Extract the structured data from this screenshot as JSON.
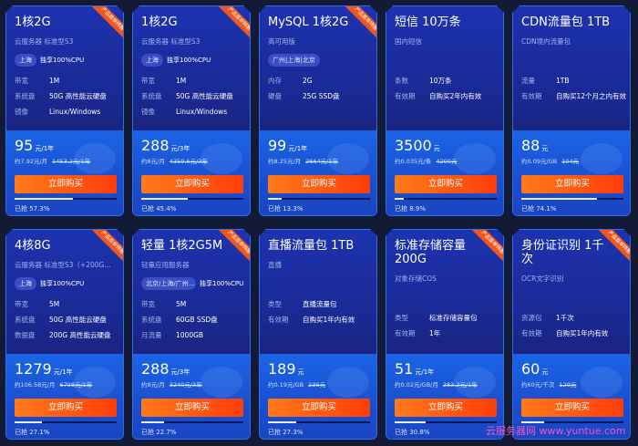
{
  "ribbon_label": "产品首单特惠",
  "buy_label": "立即购买",
  "sold_prefix": "已抢",
  "watermark": "云服务器网 www.yuntue.com",
  "colors": {
    "background": "#131a35",
    "button": "#ff5a12",
    "ribbon": "#f0571e",
    "card_top": "#1c33b0",
    "card_bottom": "#1b64e6"
  },
  "cards": [
    {
      "title": "1核2G",
      "subtitle": "云服务器 标准型S3",
      "ribbon": true,
      "tags": [
        "上海"
      ],
      "tag_note": "独享100%CPU",
      "specs": [
        [
          "带宽",
          "1M"
        ],
        [
          "系统盘",
          "50G 高性能云硬盘"
        ],
        [
          "镜像",
          "Linux/Windows"
        ]
      ],
      "price": "95",
      "unit": "元/1年",
      "per": "约7.92元/月",
      "orig": "1453.2元/1年",
      "sold_pct": 57.3,
      "sold_text": "已抢 57.3%"
    },
    {
      "title": "1核2G",
      "subtitle": "云服务器 标准型S3",
      "ribbon": true,
      "tags": [
        "上海"
      ],
      "tag_note": "独享100%CPU",
      "specs": [
        [
          "带宽",
          "1M"
        ],
        [
          "系统盘",
          "50G 高性能云硬盘"
        ],
        [
          "镜像",
          "Linux/Windows"
        ]
      ],
      "price": "288",
      "unit": "元/3年",
      "per": "约8元/月",
      "orig": "4359.6元/3年",
      "sold_pct": 45.4,
      "sold_text": "已抢 45.4%"
    },
    {
      "title": "MySQL 1核2G",
      "subtitle": "高可用版",
      "ribbon": true,
      "tags": [
        "广州|上海|北京"
      ],
      "tag_note": "",
      "specs": [
        [
          "内存",
          "2G"
        ],
        [
          "硬盘",
          "25G SSD盘"
        ]
      ],
      "price": "99",
      "unit": "元/1年",
      "per": "约8.25元/月",
      "orig": "2664元/1年",
      "sold_pct": 13.3,
      "sold_text": "已抢 13.3%"
    },
    {
      "title": "短信 10万条",
      "subtitle": "国内短信",
      "ribbon": false,
      "tags": [],
      "tag_note": "",
      "specs": [
        [
          "条数",
          "10万条"
        ],
        [
          "有效期",
          "自购买2年内有效"
        ]
      ],
      "price": "3500",
      "unit": "元",
      "per": "约0.035元/条",
      "orig": "4200元",
      "sold_pct": 8.9,
      "sold_text": "已抢 8.9%"
    },
    {
      "title": "CDN流量包 1TB",
      "subtitle": "CDN境内流量包",
      "ribbon": false,
      "tags": [],
      "tag_note": "",
      "specs": [
        [
          "流量",
          "1TB"
        ],
        [
          "有效期",
          "自购买12个月之内有效"
        ]
      ],
      "price": "88",
      "unit": "元",
      "per": "约0.09元/GB",
      "orig": "104元",
      "sold_pct": 74.1,
      "sold_text": "已抢 74.1%"
    },
    {
      "title": "4核8G",
      "subtitle": "云服务器 标准型S3（+200G...",
      "ribbon": true,
      "tags": [
        "上海"
      ],
      "tag_note": "独享100%CPU",
      "specs": [
        [
          "带宽",
          "5M"
        ],
        [
          "系统盘",
          "50G 高性能云硬盘"
        ],
        [
          "数据盘",
          "200G 高性能云硬盘"
        ]
      ],
      "price": "1279",
      "unit": "元/1年",
      "per": "约106.58元/月",
      "orig": "6798元/1年",
      "sold_pct": 27.1,
      "sold_text": "已抢 27.1%"
    },
    {
      "title": "轻量 1核2G5M",
      "subtitle": "轻量应用服务器",
      "ribbon": true,
      "tags": [
        "北京/上海/广州..."
      ],
      "tag_note": "独享100%CPU",
      "specs": [
        [
          "带宽",
          "5M"
        ],
        [
          "系统盘",
          "60GB SSD盘"
        ],
        [
          "月流量",
          "1000GB"
        ]
      ],
      "price": "288",
      "unit": "元/3年",
      "per": "约8元/月",
      "orig": "3240元/3年",
      "sold_pct": 22.7,
      "sold_text": "已抢 22.7%"
    },
    {
      "title": "直播流量包 1TB",
      "subtitle": "直播",
      "ribbon": false,
      "tags": [],
      "tag_note": "",
      "specs": [
        [
          "类型",
          "直播流量包"
        ],
        [
          "有效期",
          "自购买1年内有效"
        ]
      ],
      "price": "189",
      "unit": "元",
      "per": "约0.19元/GB",
      "orig": "236元",
      "sold_pct": 27.3,
      "sold_text": "已抢 27.3%"
    },
    {
      "title": "标准存储容量 200G",
      "subtitle": "对象存储COS",
      "ribbon": true,
      "tags": [],
      "tag_note": "",
      "specs": [
        [
          "类型",
          "标准存储容量包"
        ],
        [
          "有效期",
          "1年"
        ]
      ],
      "price": "51",
      "unit": "元/1年",
      "per": "约0.02元/GB/月",
      "orig": "283.2元/1年",
      "sold_pct": 30.8,
      "sold_text": "已抢 30.8%"
    },
    {
      "title": "身份证识别 1千次",
      "subtitle": "OCR文字识别",
      "ribbon": true,
      "tags": [],
      "tag_note": "",
      "specs": [
        [
          "资源包",
          "1千次"
        ],
        [
          "有效期",
          "自购买1年内有效"
        ]
      ],
      "price": "60",
      "unit": "元",
      "per": "约60元/千次",
      "orig": "120元",
      "sold_pct": 22,
      "sold_text": ""
    }
  ]
}
